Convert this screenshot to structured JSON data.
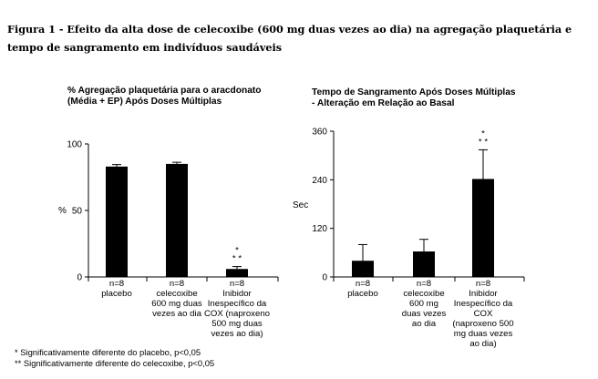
{
  "figure": {
    "title": "Figura 1 - Efeito da alta dose de celecoxibe (600 mg duas vezes ao dia) na agregação plaquetária e tempo de sangramento em indivíduos saudáveis",
    "footnotes": [
      "* Significativamente diferente do placebo, p<0,05",
      "** Significativamente diferente do celecoxibe, p<0,05"
    ]
  },
  "chart_data": [
    {
      "type": "bar",
      "title_lines": [
        "% Agregação plaquetária para o aracdonato",
        "(Média + EP) Após Doses Múltiplas"
      ],
      "ylabel": "%",
      "ylim": [
        0,
        100
      ],
      "yticks": [
        0,
        50,
        100
      ],
      "grid": false,
      "legend": "none",
      "categories": [
        [
          "n=8",
          "placebo"
        ],
        [
          "n=8",
          "celecoxibe",
          "600 mg duas",
          "vezes ao dia"
        ],
        [
          "n=8",
          "Inibidor",
          "Inespecífico da",
          "COX (naproxeno",
          "500 mg duas",
          "vezes ao dia)"
        ]
      ],
      "values": [
        83,
        85,
        6
      ],
      "errors": [
        1.5,
        1.2,
        1.8
      ],
      "annotations": [
        {
          "category": 2,
          "lines": [
            "*",
            "* *"
          ]
        }
      ]
    },
    {
      "type": "bar",
      "title_lines": [
        "Tempo de Sangramento Após Doses Múltiplas",
        "- Alteração em Relação ao Basal"
      ],
      "ylabel": "Sec",
      "ylim": [
        0,
        360
      ],
      "yticks": [
        0,
        120,
        240,
        360
      ],
      "grid": false,
      "legend": "none",
      "categories": [
        [
          "n=8",
          "placebo"
        ],
        [
          "n=8",
          "celecoxibe",
          "600 mg",
          "duas vezes",
          "ao dia"
        ],
        [
          "n=8",
          "Inibidor",
          "Inespecífico da",
          "COX",
          "(naproxeno 500",
          "mg duas vezes",
          "ao dia)"
        ]
      ],
      "values": [
        40,
        63,
        242
      ],
      "errors": [
        40,
        30,
        72
      ],
      "annotations": [
        {
          "category": 2,
          "lines": [
            "*",
            "* *"
          ]
        }
      ]
    }
  ]
}
